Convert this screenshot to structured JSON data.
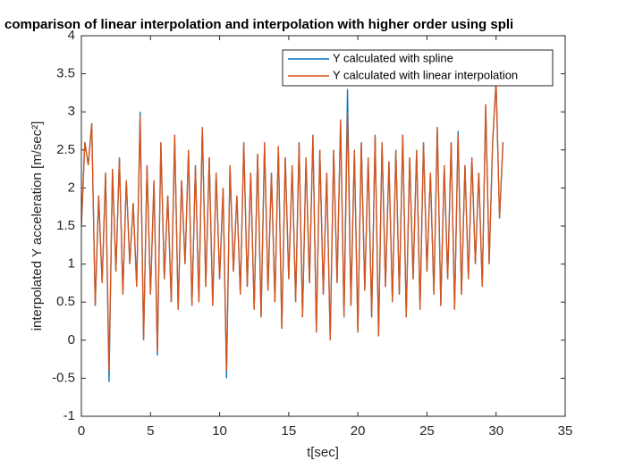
{
  "chart_data": {
    "type": "line",
    "title": "comparison of linear interpolation and interpolation with higher order using spli",
    "xlabel": "t[sec]",
    "ylabel": "interpolated  Y  acceleration  [m/sec²]",
    "xlim": [
      0,
      35
    ],
    "xticks": [
      0,
      5,
      10,
      15,
      20,
      25,
      30,
      35
    ],
    "ylim": [
      -1,
      4
    ],
    "yticks": [
      -1,
      -0.5,
      0,
      0.5,
      1,
      1.5,
      2,
      2.5,
      3,
      3.5,
      4
    ],
    "legend": "top-right",
    "x": [
      0,
      0.25,
      0.5,
      0.75,
      1,
      1.25,
      1.5,
      1.75,
      2,
      2.25,
      2.5,
      2.75,
      3,
      3.25,
      3.5,
      3.75,
      4,
      4.25,
      4.5,
      4.75,
      5,
      5.25,
      5.5,
      5.75,
      6,
      6.25,
      6.5,
      6.75,
      7,
      7.25,
      7.5,
      7.75,
      8,
      8.25,
      8.5,
      8.75,
      9,
      9.25,
      9.5,
      9.75,
      10,
      10.25,
      10.5,
      10.75,
      11,
      11.25,
      11.5,
      11.75,
      12,
      12.25,
      12.5,
      12.75,
      13,
      13.25,
      13.5,
      13.75,
      14,
      14.25,
      14.5,
      14.75,
      15,
      15.25,
      15.5,
      15.75,
      16,
      16.25,
      16.5,
      16.75,
      17,
      17.25,
      17.5,
      17.75,
      18,
      18.25,
      18.5,
      18.75,
      19,
      19.25,
      19.5,
      19.75,
      20,
      20.25,
      20.5,
      20.75,
      21,
      21.25,
      21.5,
      21.75,
      22,
      22.25,
      22.5,
      22.75,
      23,
      23.25,
      23.5,
      23.75,
      24,
      24.25,
      24.5,
      24.75,
      25,
      25.25,
      25.5,
      25.75,
      26,
      26.25,
      26.5,
      26.75,
      27,
      27.25,
      27.5,
      27.75,
      28,
      28.25,
      28.5,
      28.75,
      29,
      29.25,
      29.5,
      29.75,
      30,
      30.25,
      30.5
    ],
    "series": [
      {
        "name": "Y calculated with spline",
        "color": "#0072BD",
        "values": [
          1.5,
          2.6,
          2.3,
          2.85,
          0.45,
          1.9,
          0.75,
          2.2,
          -0.55,
          2.25,
          0.9,
          2.4,
          0.6,
          2.1,
          1.0,
          1.8,
          0.7,
          3.0,
          0.0,
          2.3,
          0.6,
          2.1,
          -0.2,
          2.6,
          0.8,
          1.9,
          0.5,
          2.7,
          0.4,
          2.1,
          1.0,
          2.5,
          0.45,
          2.3,
          0.5,
          2.8,
          0.7,
          2.4,
          0.45,
          2.2,
          0.8,
          2.0,
          -0.5,
          2.3,
          0.9,
          1.9,
          0.6,
          2.6,
          0.7,
          2.2,
          0.4,
          2.45,
          0.3,
          2.6,
          0.65,
          2.2,
          0.5,
          2.55,
          0.15,
          2.4,
          0.8,
          2.3,
          0.5,
          2.6,
          0.3,
          2.4,
          0.75,
          2.7,
          0.1,
          2.5,
          0.6,
          2.2,
          0.0,
          2.5,
          0.75,
          2.9,
          0.3,
          3.3,
          0.45,
          2.5,
          0.1,
          2.6,
          0.65,
          2.4,
          0.3,
          2.7,
          0.05,
          2.6,
          0.7,
          2.35,
          0.5,
          2.5,
          0.6,
          2.7,
          0.3,
          2.4,
          0.8,
          2.5,
          0.4,
          2.6,
          0.9,
          2.2,
          0.6,
          2.8,
          0.45,
          2.3,
          0.8,
          2.6,
          0.4,
          2.75,
          0.6,
          2.3,
          0.8,
          2.4,
          1.0,
          2.2,
          0.7,
          3.1,
          1.0,
          2.6,
          3.4,
          1.6,
          2.6
        ]
      },
      {
        "name": "Y calculated with linear interpolation",
        "color": "#D95319",
        "values": [
          1.5,
          2.6,
          2.3,
          2.85,
          0.45,
          1.9,
          0.75,
          2.2,
          -0.4,
          2.25,
          0.9,
          2.4,
          0.6,
          2.1,
          1.0,
          1.8,
          0.7,
          2.95,
          0.0,
          2.3,
          0.6,
          2.1,
          -0.15,
          2.6,
          0.8,
          1.9,
          0.5,
          2.7,
          0.4,
          2.1,
          1.0,
          2.5,
          0.45,
          2.3,
          0.5,
          2.8,
          0.7,
          2.4,
          0.45,
          2.2,
          0.8,
          2.0,
          -0.4,
          2.3,
          0.9,
          1.9,
          0.6,
          2.6,
          0.7,
          2.2,
          0.4,
          2.45,
          0.3,
          2.6,
          0.65,
          2.2,
          0.5,
          2.55,
          0.15,
          2.4,
          0.8,
          2.3,
          0.5,
          2.6,
          0.3,
          2.4,
          0.75,
          2.7,
          0.1,
          2.5,
          0.6,
          2.2,
          0.0,
          2.5,
          0.75,
          2.9,
          0.3,
          3.0,
          0.45,
          2.5,
          0.1,
          2.6,
          0.65,
          2.4,
          0.3,
          2.7,
          0.05,
          2.6,
          0.7,
          2.35,
          0.5,
          2.5,
          0.6,
          2.7,
          0.3,
          2.4,
          0.8,
          2.5,
          0.4,
          2.6,
          0.9,
          2.2,
          0.6,
          2.8,
          0.45,
          2.3,
          0.8,
          2.6,
          0.4,
          2.7,
          0.6,
          2.3,
          0.8,
          2.4,
          1.0,
          2.2,
          0.7,
          3.1,
          1.0,
          2.6,
          3.4,
          1.6,
          2.6
        ]
      }
    ]
  }
}
